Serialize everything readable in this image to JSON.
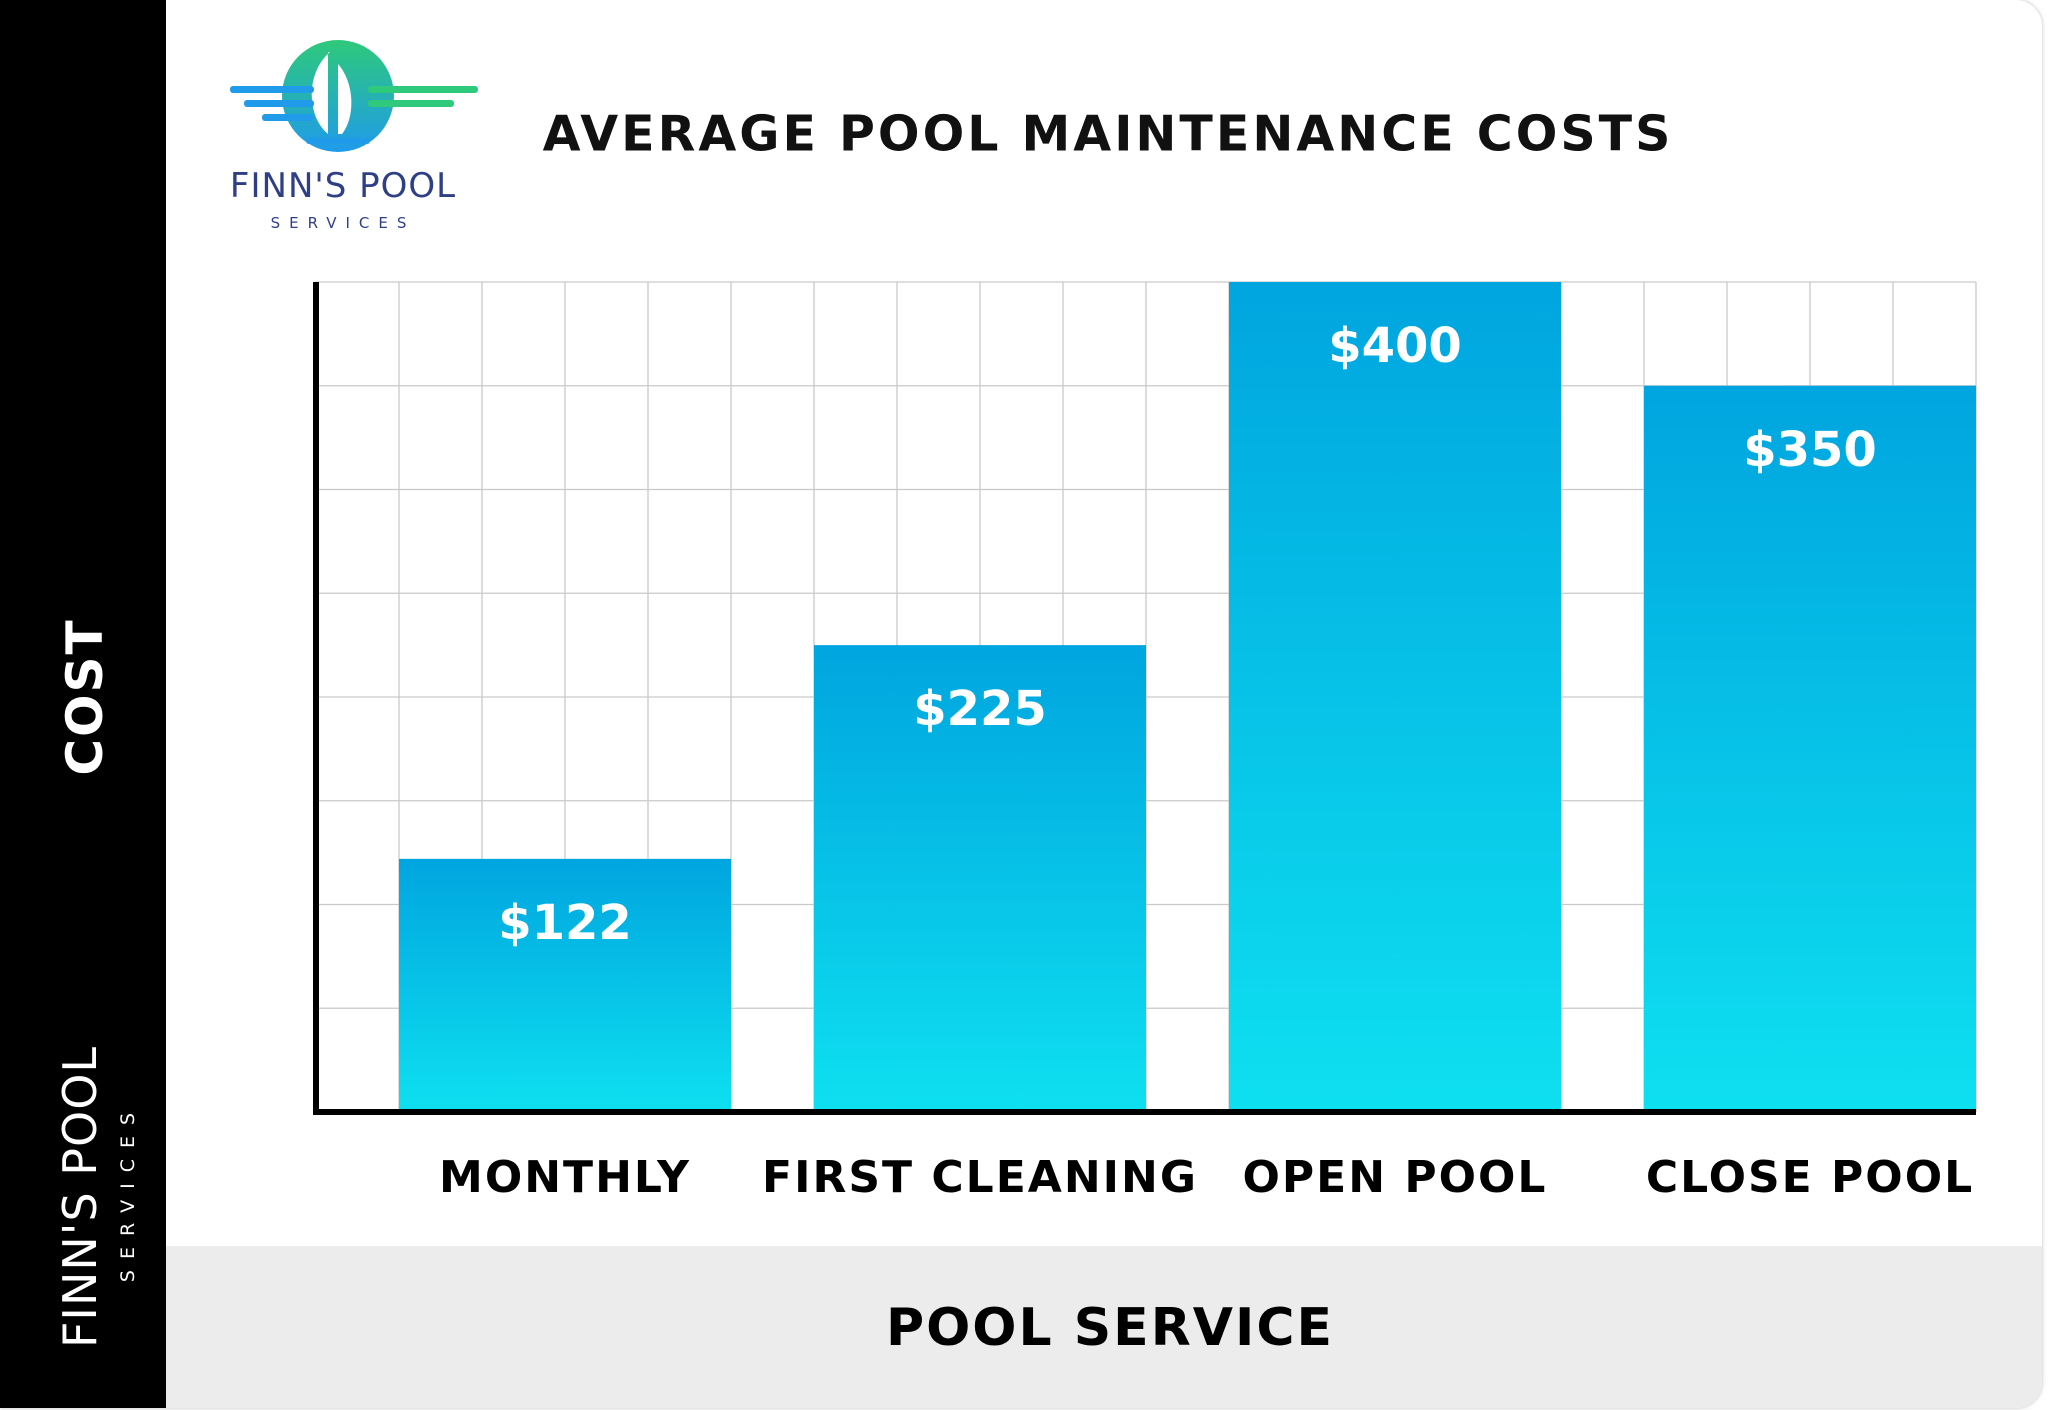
{
  "brand": {
    "name": "FINN'S POOL",
    "tagline": "SERVICES",
    "colors": {
      "navy": "#2f3f86",
      "green": "#2ec97a",
      "blue": "#1f9bea"
    }
  },
  "side_brand": {
    "name": "FINN'S POOL",
    "tagline": "SERVICES"
  },
  "chart_data": {
    "type": "bar",
    "title": "AVERAGE POOL MAINTENANCE COSTS",
    "xlabel": "POOL SERVICE",
    "ylabel": "COST",
    "categories": [
      "MONTHLY",
      "FIRST CLEANING",
      "OPEN POOL",
      "CLOSE POOL"
    ],
    "values": [
      122,
      225,
      400,
      350
    ],
    "value_labels": [
      "$122",
      "$225",
      "$400",
      "$350"
    ],
    "ylim": [
      0,
      400
    ],
    "grid": true,
    "bar_gradient": [
      "#00a5df",
      "#0ee0f0"
    ]
  }
}
